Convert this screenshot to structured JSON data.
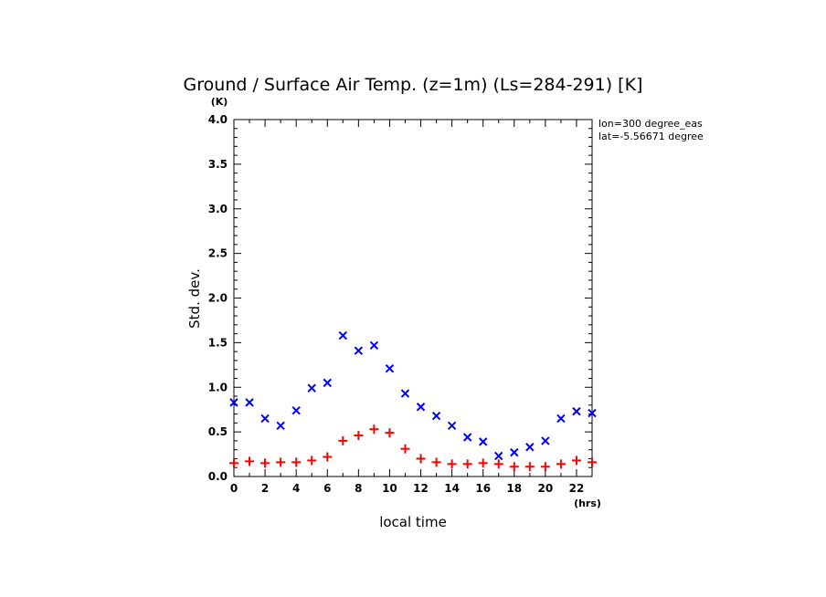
{
  "chart_data": {
    "type": "scatter",
    "title": "Ground / Surface Air Temp. (z=1m) (Ls=284-291) [K]",
    "xlabel": "local time",
    "ylabel": "Std. dev.",
    "x_unit": "(hrs)",
    "y_unit": "(K)",
    "xlim": [
      0,
      23
    ],
    "ylim": [
      0,
      4.0
    ],
    "x_ticks": [
      "0",
      "2",
      "4",
      "6",
      "8",
      "10",
      "12",
      "14",
      "16",
      "18",
      "20",
      "22"
    ],
    "y_ticks": [
      "0.0",
      "0.5",
      "1.0",
      "1.5",
      "2.0",
      "2.5",
      "3.0",
      "3.5",
      "4.0"
    ],
    "annotations": [
      "lon=300 degree_eas",
      "lat=-5.56671 degree"
    ],
    "x": [
      0,
      1,
      2,
      3,
      4,
      5,
      6,
      7,
      8,
      9,
      10,
      11,
      12,
      13,
      14,
      15,
      16,
      17,
      18,
      19,
      20,
      21,
      22,
      23
    ],
    "series": [
      {
        "marker": "x",
        "color": "#0000ff",
        "values": [
          0.83,
          0.83,
          0.65,
          0.57,
          0.74,
          0.99,
          1.05,
          1.58,
          1.41,
          1.47,
          1.21,
          0.93,
          0.78,
          0.68,
          0.57,
          0.44,
          0.39,
          0.23,
          0.27,
          0.33,
          0.4,
          0.65,
          0.73,
          0.71
        ]
      },
      {
        "marker": "+",
        "color": "#ff0000",
        "values": [
          0.15,
          0.17,
          0.15,
          0.16,
          0.16,
          0.18,
          0.22,
          0.4,
          0.46,
          0.53,
          0.49,
          0.31,
          0.2,
          0.16,
          0.14,
          0.14,
          0.15,
          0.14,
          0.11,
          0.11,
          0.11,
          0.14,
          0.18,
          0.16
        ]
      }
    ]
  }
}
